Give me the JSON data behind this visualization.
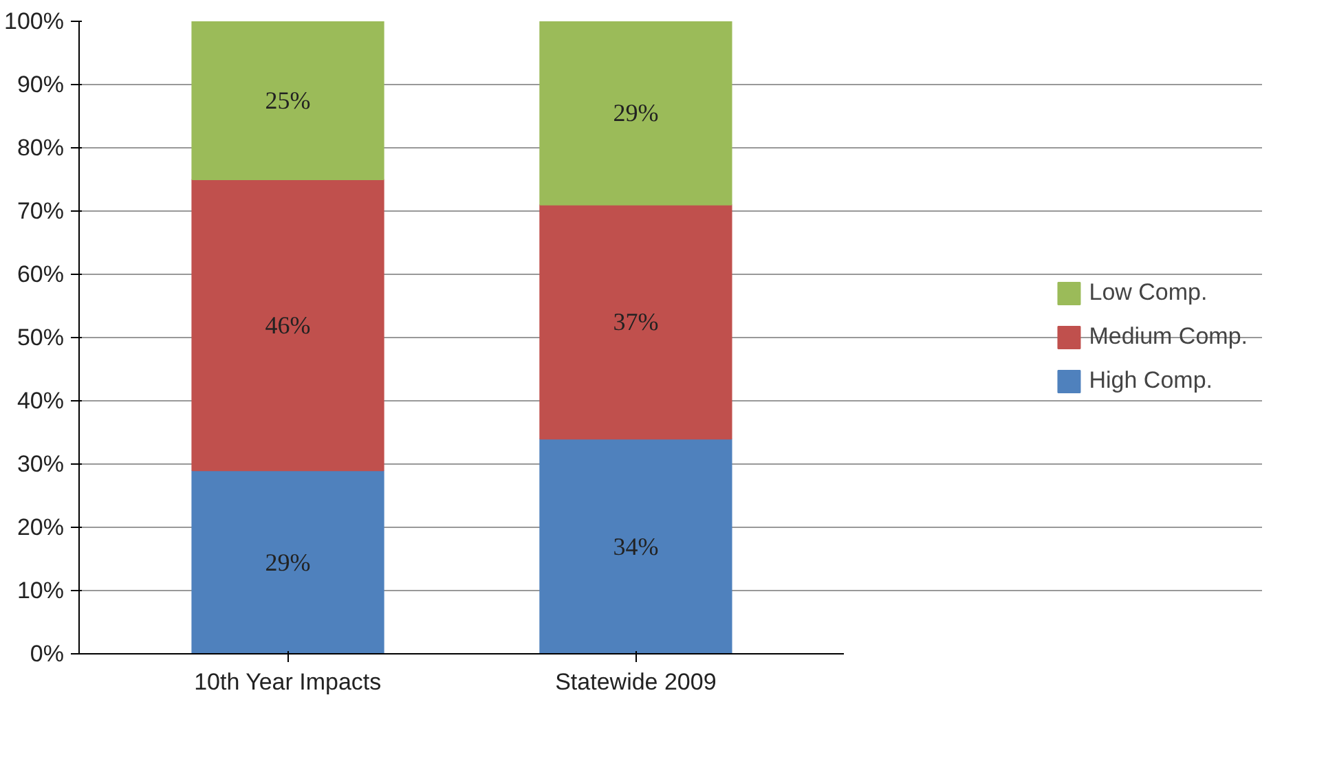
{
  "chart_data": {
    "type": "bar",
    "stacked": true,
    "categories": [
      "10th Year Impacts",
      "Statewide 2009"
    ],
    "series": [
      {
        "name": "High Comp.",
        "color": "#4f81bd",
        "values": [
          29,
          34
        ],
        "value_labels": [
          "29%",
          "34%"
        ]
      },
      {
        "name": "Medium Comp.",
        "color": "#c0504d",
        "values": [
          46,
          37
        ],
        "value_labels": [
          "46%",
          "37%"
        ]
      },
      {
        "name": "Low Comp.",
        "color": "#9bbb59",
        "values": [
          25,
          29
        ],
        "value_labels": [
          "25%",
          "29%"
        ]
      }
    ],
    "ylim": [
      0,
      100
    ],
    "yticks": [
      {
        "value": 0,
        "label": "0%"
      },
      {
        "value": 10,
        "label": "10%"
      },
      {
        "value": 20,
        "label": "20%"
      },
      {
        "value": 30,
        "label": "30%"
      },
      {
        "value": 40,
        "label": "40%"
      },
      {
        "value": 50,
        "label": "50%"
      },
      {
        "value": 60,
        "label": "60%"
      },
      {
        "value": 70,
        "label": "70%"
      },
      {
        "value": 80,
        "label": "80%"
      },
      {
        "value": 90,
        "label": "90%"
      },
      {
        "value": 100,
        "label": "100%"
      }
    ],
    "grid": "y",
    "legend": "right"
  }
}
